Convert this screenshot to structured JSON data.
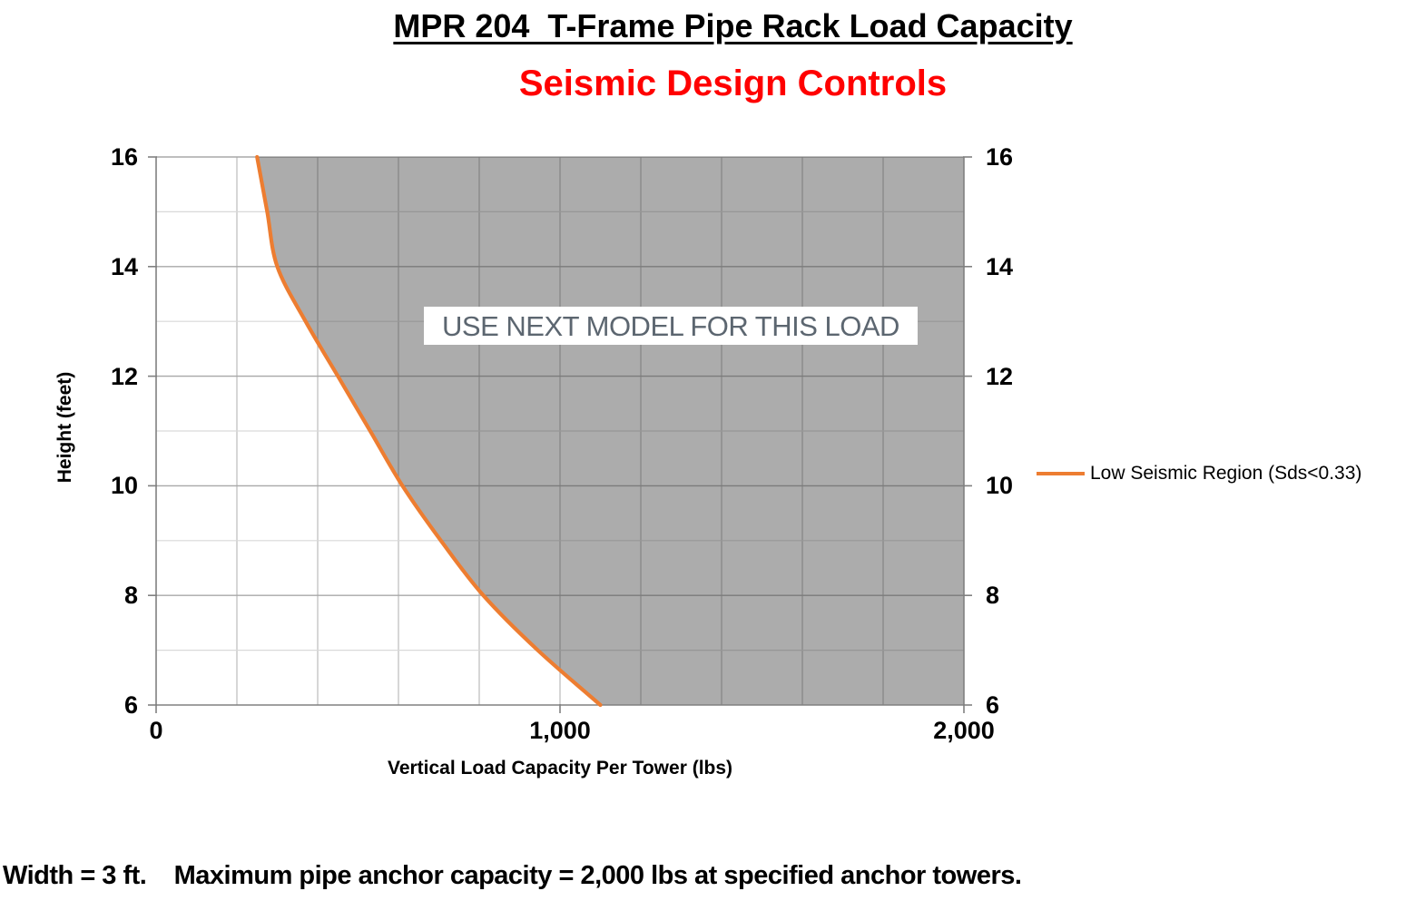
{
  "header": {
    "title": "MPR 204  T-Frame Pipe Rack Load Capacity",
    "subtitle": "Seismic Design Controls",
    "subtitle_color": "#FF0000"
  },
  "chart_data": {
    "type": "area",
    "title": "MPR 204  T-Frame Pipe Rack Load Capacity",
    "subtitle": "Seismic Design Controls",
    "xlabel": "Vertical Load Capacity Per Tower (lbs)",
    "ylabel": "Height (feet)",
    "xlim": [
      0,
      2000
    ],
    "ylim": [
      6,
      16
    ],
    "x_grid_step": 200,
    "y_grid_step": 1,
    "grid": true,
    "x_ticks": [
      {
        "value": 0,
        "label": "0"
      },
      {
        "value": 1000,
        "label": "1,000"
      },
      {
        "value": 2000,
        "label": "2,000"
      }
    ],
    "y_ticks": [
      16,
      14,
      12,
      10,
      8,
      6
    ],
    "legend_position": "right",
    "series": [
      {
        "name": "Low Seismic Region (Sds<0.33)",
        "color": "#ED7D31",
        "x_meaning": "vertical_load_capacity_lbs",
        "y_meaning": "height_feet",
        "points": [
          [
            250,
            16
          ],
          [
            275,
            15
          ],
          [
            300,
            14
          ],
          [
            370,
            13
          ],
          [
            450,
            12
          ],
          [
            530,
            11
          ],
          [
            610,
            10
          ],
          [
            705,
            9
          ],
          [
            810,
            8
          ],
          [
            945,
            7
          ],
          [
            1100,
            6
          ]
        ]
      }
    ],
    "shaded_region": {
      "label": "USE NEXT MODEL FOR THIS LOAD",
      "side": "right_of_curve",
      "fill": "#ACACAC",
      "label_color": "#5C6670",
      "label_background": "#FFFFFF"
    }
  },
  "footer": {
    "note": "Width = 3 ft.    Maximum pipe anchor capacity = 2,000 lbs at specified anchor towers."
  }
}
